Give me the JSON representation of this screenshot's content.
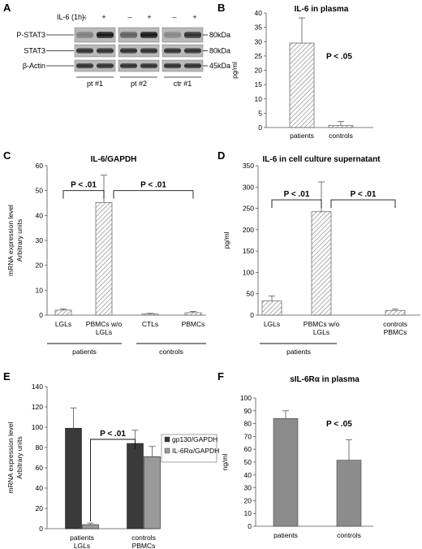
{
  "panels": {
    "A": {
      "label": "A",
      "treatment_label": "IL-6 (1h):",
      "treatment_signs": [
        "–",
        "+",
        "–",
        "+",
        "–",
        "+"
      ],
      "rows": [
        {
          "name": "P-STAT3",
          "size": "80kDa"
        },
        {
          "name": "STAT3",
          "size": "80kDa"
        },
        {
          "name": "β-Actin",
          "size": "45kDa"
        }
      ],
      "groups": [
        "pt #1",
        "pt #2",
        "ctr #1"
      ]
    }
  },
  "chart_data": [
    {
      "panel": "B",
      "type": "bar",
      "title": "IL-6 in plasma",
      "ylabel": "pg/ml",
      "xlabel": "",
      "ylim": [
        0,
        40
      ],
      "yticks": [
        0,
        5,
        10,
        15,
        20,
        25,
        30,
        35,
        40
      ],
      "categories": [
        "patients",
        "controls"
      ],
      "values": [
        29.5,
        0.7
      ],
      "errors": [
        8.8,
        1.4
      ],
      "fill": "hatch",
      "annotations": [
        {
          "text": "P < .05"
        }
      ]
    },
    {
      "panel": "C",
      "type": "bar",
      "title": "IL-6/GAPDH",
      "ylabel": "mRNA expression level",
      "ylabel2": "Arbitrary units",
      "xlabel": "",
      "ylim": [
        0,
        60
      ],
      "yticks": [
        0,
        10,
        20,
        30,
        40,
        50,
        60
      ],
      "categories": [
        "LGLs",
        "PBMCs w/o LGLs",
        "CTLs",
        "PBMCs"
      ],
      "category_lines": [
        [
          "LGLs"
        ],
        [
          "PBMCs w/o",
          "LGLs"
        ],
        [
          "CTLs"
        ],
        [
          "PBMCs"
        ]
      ],
      "values": [
        2.0,
        45.2,
        0.5,
        1.0
      ],
      "errors": [
        0.5,
        11.0,
        0.2,
        0.5
      ],
      "fill": "hatch",
      "annotations": [
        {
          "text": "P < .01"
        },
        {
          "text": "P < .01"
        }
      ],
      "groups": [
        {
          "label": "patients"
        },
        {
          "label": "controls"
        }
      ]
    },
    {
      "panel": "D",
      "type": "bar",
      "title": "IL-6 in cell culture supernatant",
      "ylabel": "pg/ml",
      "xlabel": "",
      "ylim": [
        0,
        350
      ],
      "yticks": [
        0,
        50,
        100,
        150,
        200,
        250,
        300,
        350
      ],
      "categories": [
        "LGLs",
        "PBMCs w/o LGLs",
        "controls PBMCs"
      ],
      "category_lines": [
        [
          "LGLs"
        ],
        [
          "PBMCs w/o",
          "LGLs"
        ],
        [
          "controls",
          "PBMCs"
        ]
      ],
      "values": [
        33,
        242,
        11
      ],
      "errors": [
        12,
        70,
        3
      ],
      "fill": "hatch",
      "annotations": [
        {
          "text": "P < .01"
        },
        {
          "text": "P < .01"
        }
      ],
      "groups": [
        {
          "label": "patients"
        }
      ]
    },
    {
      "panel": "E",
      "type": "bar",
      "title": "",
      "ylabel": "mRNA expression level",
      "ylabel2": "Arbitrary units",
      "xlabel": "",
      "ylim": [
        0,
        140
      ],
      "yticks": [
        0,
        20,
        40,
        60,
        80,
        100,
        120,
        140
      ],
      "categories": [
        "patients LGLs",
        "controls PBMCs"
      ],
      "category_lines": [
        [
          "patients",
          "LGLs"
        ],
        [
          "controls",
          "PBMCs"
        ]
      ],
      "series": [
        {
          "name": "gp130/GAPDH",
          "values": [
            99,
            84
          ],
          "errors": [
            20,
            13
          ],
          "color": "#3a3a3a"
        },
        {
          "name": "IL-6Rα/GAPDH",
          "values": [
            4,
            71
          ],
          "errors": [
            1.5,
            10
          ],
          "color": "#9a9a9a"
        }
      ],
      "legend": "right",
      "annotations": [
        {
          "text": "P < .01"
        }
      ]
    },
    {
      "panel": "F",
      "type": "bar",
      "title": "sIL-6Rα in plasma",
      "ylabel": "ng/ml",
      "xlabel": "",
      "ylim": [
        0,
        100
      ],
      "yticks": [
        0,
        10,
        20,
        30,
        40,
        50,
        60,
        70,
        80,
        90,
        100
      ],
      "categories": [
        "patients",
        "controls"
      ],
      "values": [
        84,
        51.5
      ],
      "errors": [
        6,
        16
      ],
      "fill": "#8c8c8c",
      "annotations": [
        {
          "text": "P < .05"
        }
      ]
    }
  ],
  "panel_labels": [
    "B",
    "C",
    "D",
    "E",
    "F"
  ]
}
